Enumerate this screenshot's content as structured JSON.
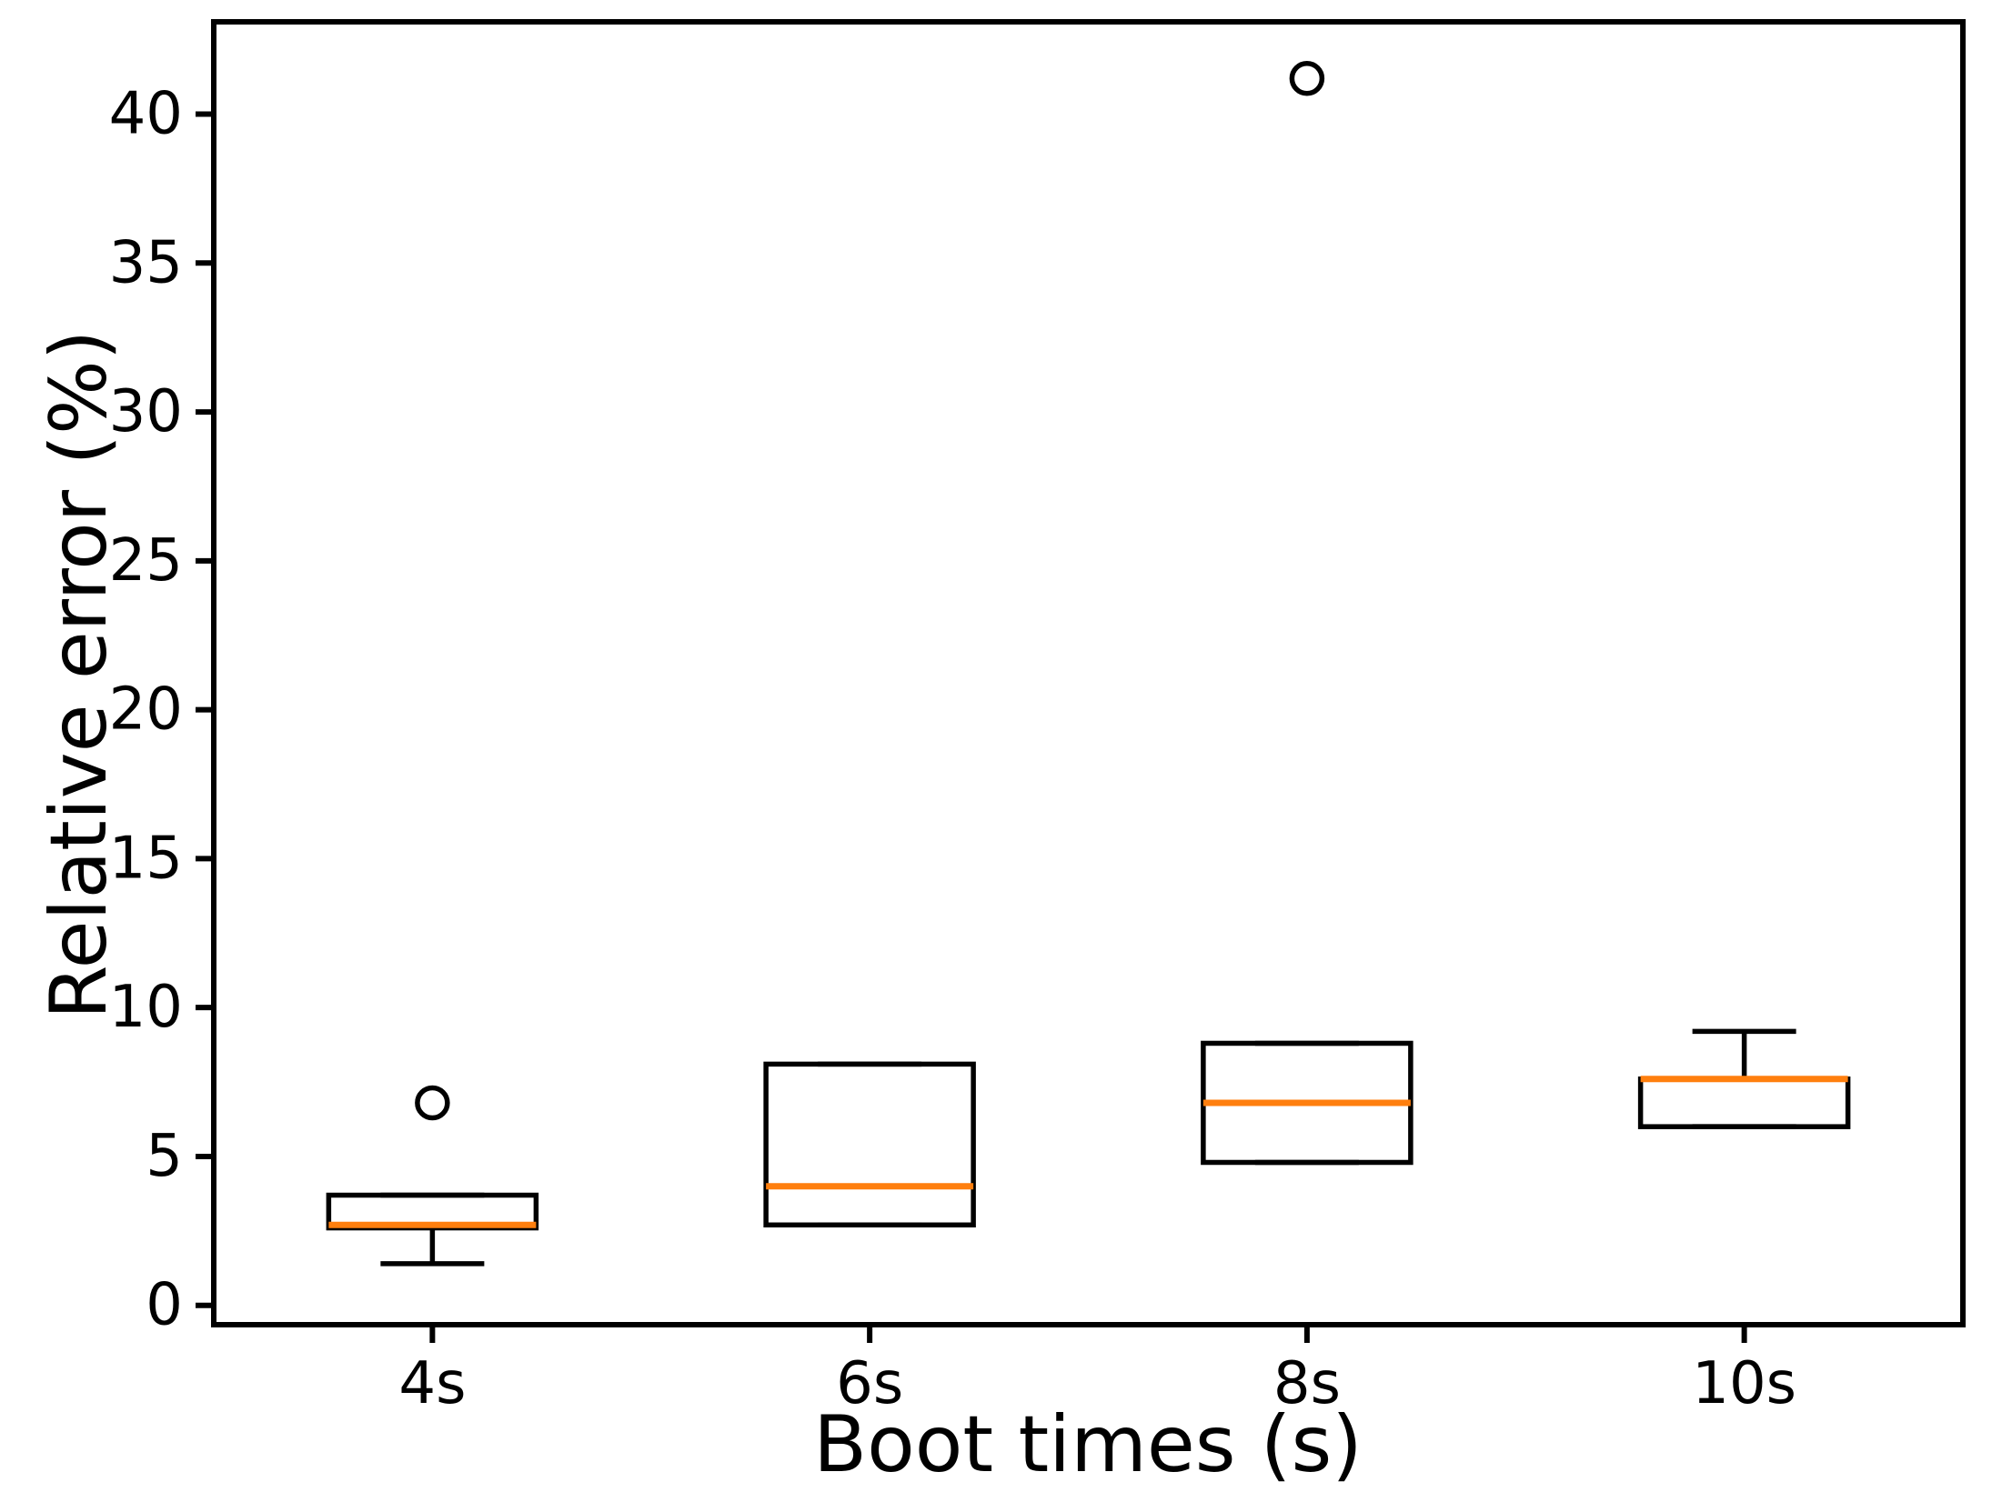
{
  "figure": {
    "background": "#ffffff"
  },
  "chart_data": {
    "type": "boxplot",
    "title": "",
    "xlabel": "Boot times (s)",
    "ylabel": "Relative error (%)",
    "categories": [
      "4s",
      "6s",
      "8s",
      "10s"
    ],
    "yticks": [
      0,
      5,
      10,
      15,
      20,
      25,
      30,
      35,
      40
    ],
    "ylim": [
      -0.65,
      43.1
    ],
    "xlim": [
      0.5,
      4.5
    ],
    "grid": false,
    "legend": null,
    "series": [
      {
        "label": "4s",
        "whislo": 1.4,
        "q1": 2.6,
        "med": 2.7,
        "q3": 3.7,
        "whishi": 3.7,
        "fliers": [
          6.8
        ]
      },
      {
        "label": "6s",
        "whislo": 2.7,
        "q1": 2.7,
        "med": 4.0,
        "q3": 8.1,
        "whishi": 8.1,
        "fliers": []
      },
      {
        "label": "8s",
        "whislo": 4.8,
        "q1": 4.8,
        "med": 6.8,
        "q3": 8.8,
        "whishi": 8.8,
        "fliers": [
          41.2
        ]
      },
      {
        "label": "10s",
        "whislo": 6.0,
        "q1": 6.0,
        "med": 7.6,
        "q3": 7.6,
        "whishi": 9.2,
        "fliers": []
      }
    ],
    "colors": {
      "box": "#000000",
      "whisker": "#000000",
      "cap": "#000000",
      "median": "#ff7f0e",
      "flier": "#000000",
      "frame": "#000000",
      "text": "#000000",
      "background": "#ffffff"
    }
  }
}
